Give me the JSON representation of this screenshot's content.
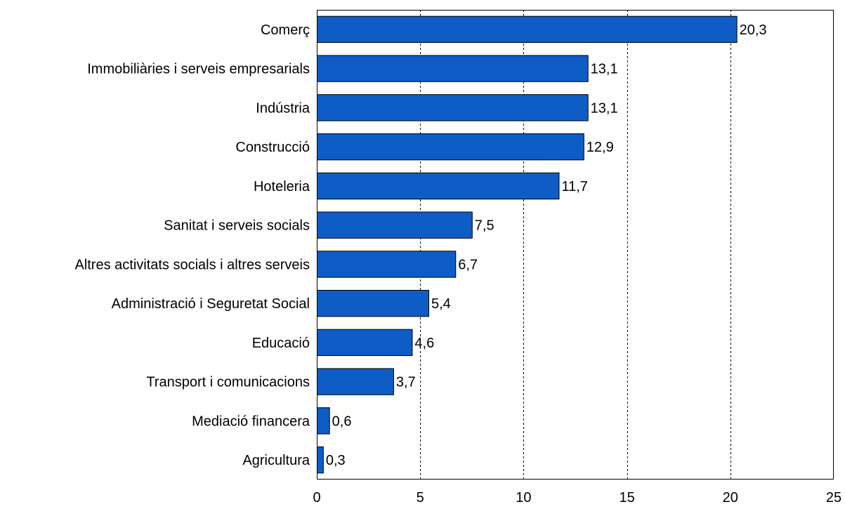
{
  "chart_data": {
    "type": "bar",
    "orientation": "horizontal",
    "categories": [
      "Comerç",
      "Immobiliàries i serveis empresarials",
      "Indústria",
      "Construcció",
      "Hoteleria",
      "Sanitat i serveis socials",
      "Altres activitats socials i altres serveis",
      "Administració i Seguretat Social",
      "Educació",
      "Transport i comunicacions",
      "Mediació financera",
      "Agricultura"
    ],
    "values": [
      20.3,
      13.1,
      13.1,
      12.9,
      11.7,
      7.5,
      6.7,
      5.4,
      4.6,
      3.7,
      0.6,
      0.3
    ],
    "value_labels": [
      "20,3",
      "13,1",
      "13,1",
      "12,9",
      "11,7",
      "7,5",
      "6,7",
      "5,4",
      "4,6",
      "3,7",
      "0,6",
      "0,3"
    ],
    "xlim": [
      0,
      25
    ],
    "xticks": [
      0,
      5,
      10,
      15,
      20,
      25
    ],
    "xtick_labels": [
      "0",
      "5",
      "10",
      "15",
      "20",
      "25"
    ],
    "grid": "vertical-dashed",
    "legend": "none",
    "bar_color": "#0E5DC6",
    "bar_edge_color": "#000000"
  }
}
